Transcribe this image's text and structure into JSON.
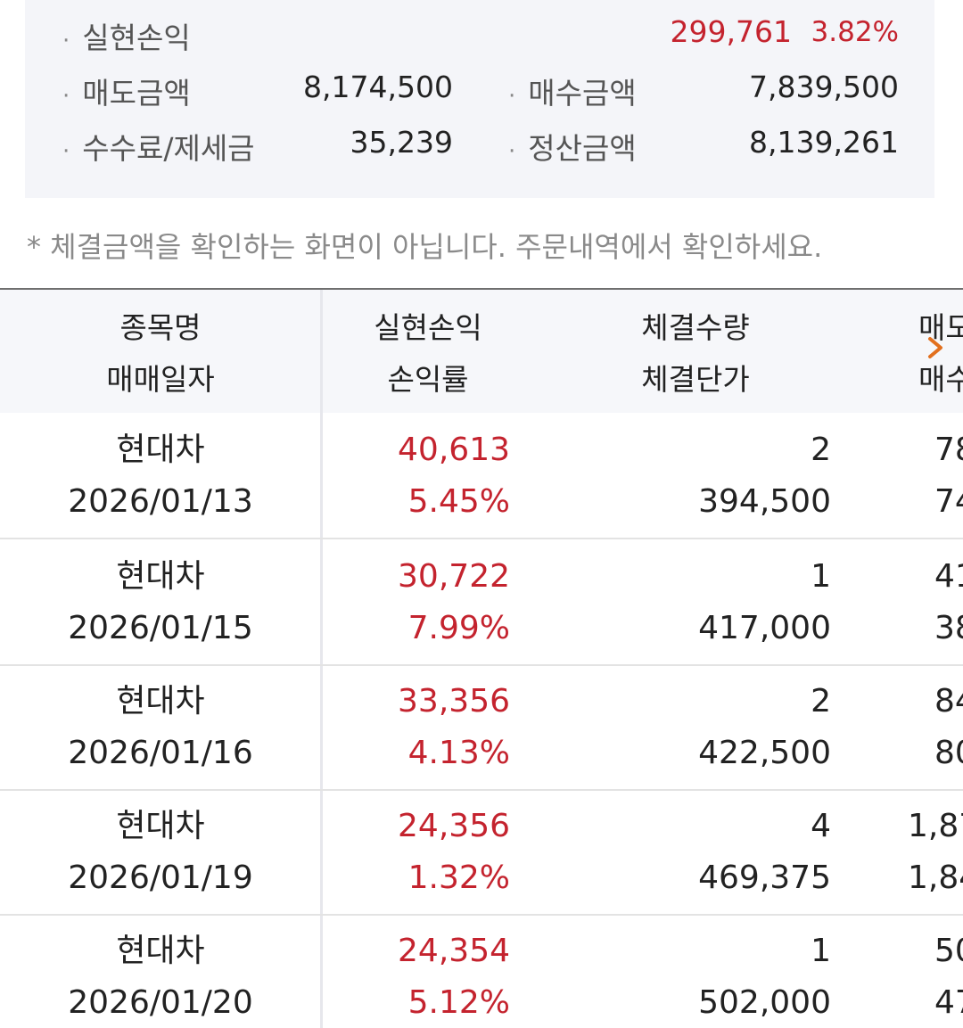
{
  "summary": {
    "realized_label": "실현손익",
    "realized_value": "299,761",
    "realized_rate": "3.82%",
    "sell_label": "매도금액",
    "sell_value": "8,174,500",
    "buy_label": "매수금액",
    "buy_value": "7,839,500",
    "fee_label": "수수료/제세금",
    "fee_value": "35,239",
    "settle_label": "정산금액",
    "settle_value": "8,139,261",
    "bullet": "·"
  },
  "notice": "* 체결금액을 확인하는 화면이 아닙니다. 주문내역에서 확인하세요.",
  "table": {
    "headers": [
      {
        "line1": "종목명",
        "line2": "매매일자"
      },
      {
        "line1": "실현손익",
        "line2": "손익률"
      },
      {
        "line1": "체결수량",
        "line2": "체결단가"
      },
      {
        "line1": "매도",
        "line2": "매수"
      }
    ],
    "rows": [
      {
        "name": "현대차",
        "date": "2026/01/13",
        "pnl": "40,613",
        "rate": "5.45%",
        "qty": "2",
        "price": "394,500",
        "c4a": "78",
        "c4b": "74"
      },
      {
        "name": "현대차",
        "date": "2026/01/15",
        "pnl": "30,722",
        "rate": "7.99%",
        "qty": "1",
        "price": "417,000",
        "c4a": "41",
        "c4b": "38"
      },
      {
        "name": "현대차",
        "date": "2026/01/16",
        "pnl": "33,356",
        "rate": "4.13%",
        "qty": "2",
        "price": "422,500",
        "c4a": "84",
        "c4b": "80"
      },
      {
        "name": "현대차",
        "date": "2026/01/19",
        "pnl": "24,356",
        "rate": "1.32%",
        "qty": "4",
        "price": "469,375",
        "c4a": "1,87",
        "c4b": "1,84"
      },
      {
        "name": "현대차",
        "date": "2026/01/20",
        "pnl": "24,354",
        "rate": "5.12%",
        "qty": "1",
        "price": "502,000",
        "c4a": "50",
        "c4b": "47"
      }
    ]
  },
  "colors": {
    "profit": "#c4232e",
    "summary_bg": "#f4f5f9",
    "header_bg": "#f6f7fa",
    "arrow": "#e2701e"
  },
  "icons": {
    "scroll_right": "chevron-right-icon"
  }
}
